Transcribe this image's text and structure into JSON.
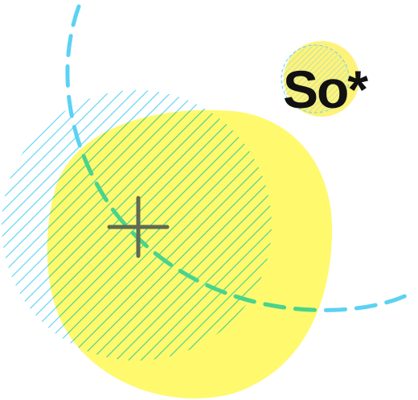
{
  "logo": {
    "wordmark": "So*",
    "colors": {
      "text": "#111111",
      "accent_fill": "#FFF27A",
      "hatch": "#6FD3E8"
    }
  },
  "artwork": {
    "colors": {
      "yellow_blob": "#FFF96E",
      "cyan_hatch": "#55D3F2",
      "green_hatch": "#40D08A",
      "dashed_arc": "#5BD2F3",
      "dashed_arc_overlap": "#49D489",
      "crosshair": "#5E6B55"
    },
    "icons": [
      "crosshair-icon",
      "dashed-orbit-arc",
      "hatched-circle",
      "yellow-blob"
    ]
  }
}
